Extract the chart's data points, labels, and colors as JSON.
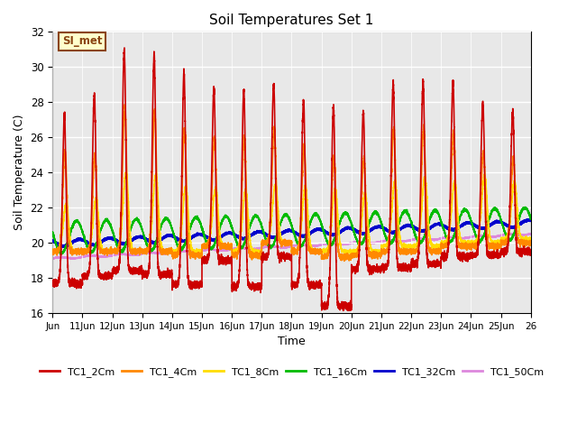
{
  "title": "Soil Temperatures Set 1",
  "xlabel": "Time",
  "ylabel": "Soil Temperature (C)",
  "ylim": [
    16,
    32
  ],
  "xlim": [
    0,
    16
  ],
  "background_color": "#e8e8e8",
  "annotation_text": "SI_met",
  "annotation_bg": "#ffffcc",
  "annotation_border": "#8B4513",
  "series": {
    "TC1_2Cm": {
      "color": "#cc0000",
      "lw": 1.2
    },
    "TC1_4Cm": {
      "color": "#ff8800",
      "lw": 1.2
    },
    "TC1_8Cm": {
      "color": "#ffdd00",
      "lw": 1.2
    },
    "TC1_16Cm": {
      "color": "#00bb00",
      "lw": 1.2
    },
    "TC1_32Cm": {
      "color": "#0000cc",
      "lw": 1.8
    },
    "TC1_50Cm": {
      "color": "#dd88dd",
      "lw": 1.2
    }
  },
  "xtick_labels": [
    "Jun",
    "11Jun",
    "12Jun",
    "13Jun",
    "14Jun",
    "15Jun",
    "16Jun",
    "17Jun",
    "18Jun",
    "19Jun",
    "20Jun",
    "21Jun",
    "22Jun",
    "23Jun",
    "24Jun",
    "25Jun",
    "26"
  ],
  "ytick_values": [
    16,
    18,
    20,
    22,
    24,
    26,
    28,
    30,
    32
  ],
  "peak_heights_2cm": [
    27.3,
    28.5,
    31.0,
    30.7,
    29.7,
    28.7,
    28.7,
    29.0,
    28.1,
    27.7,
    27.4,
    29.1,
    29.2,
    29.1,
    28.0,
    27.5
  ],
  "peak_heights_4cm": [
    25.2,
    25.1,
    27.7,
    27.5,
    26.5,
    26.0,
    26.0,
    26.5,
    25.5,
    24.9,
    24.8,
    26.5,
    26.5,
    26.3,
    25.2,
    24.8
  ],
  "peak_heights_8cm": [
    22.2,
    22.5,
    24.0,
    23.9,
    23.2,
    23.1,
    23.0,
    23.3,
    23.2,
    23.1,
    22.8,
    23.5,
    23.7,
    23.5,
    23.8,
    23.5
  ],
  "trough_2cm": [
    17.7,
    18.1,
    18.4,
    18.2,
    17.6,
    19.0,
    17.5,
    19.2,
    17.6,
    16.4,
    18.5,
    18.6,
    18.8,
    19.2,
    19.3,
    19.5
  ],
  "trough_4cm": [
    19.5,
    19.5,
    19.5,
    19.5,
    19.3,
    19.8,
    19.3,
    20.0,
    19.5,
    19.2,
    19.3,
    19.5,
    19.5,
    19.8,
    19.8,
    20.0
  ],
  "trough_8cm": [
    19.5,
    19.5,
    19.5,
    19.5,
    19.5,
    19.8,
    19.5,
    20.0,
    19.5,
    19.5,
    19.5,
    19.8,
    19.8,
    20.0,
    20.0,
    20.2
  ]
}
